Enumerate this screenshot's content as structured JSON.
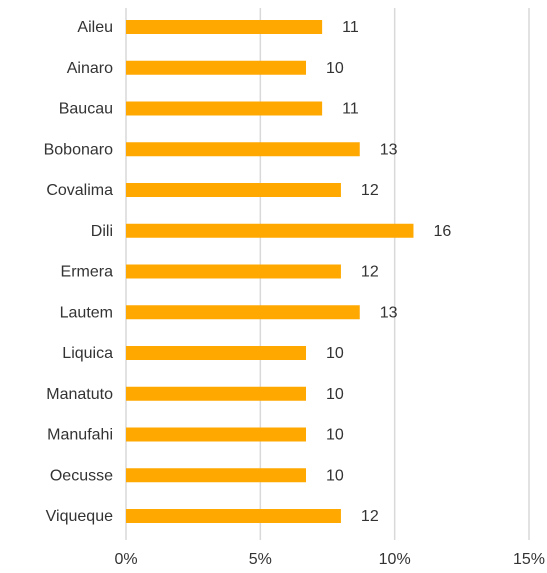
{
  "chart_data": {
    "type": "bar",
    "orientation": "horizontal",
    "categories": [
      "Aileu",
      "Ainaro",
      "Baucau",
      "Bobonaro",
      "Covalima",
      "Dili",
      "Ermera",
      "Lautem",
      "Liquica",
      "Manatuto",
      "Manufahi",
      "Oecusse",
      "Viqueque"
    ],
    "values": [
      7.3,
      6.7,
      7.3,
      8.7,
      8.0,
      10.7,
      8.0,
      8.7,
      6.7,
      6.7,
      6.7,
      6.7,
      8.0
    ],
    "value_labels": [
      "11",
      "10",
      "11",
      "13",
      "12",
      "16",
      "12",
      "13",
      "10",
      "10",
      "10",
      "10",
      "12"
    ],
    "color": "#ffa800",
    "xlim": [
      0,
      15
    ],
    "xticks": [
      {
        "value": 0,
        "label": "0%"
      },
      {
        "value": 5,
        "label": "5%"
      },
      {
        "value": 10,
        "label": "10%"
      },
      {
        "value": 15,
        "label": "15%"
      }
    ],
    "grid": true
  }
}
